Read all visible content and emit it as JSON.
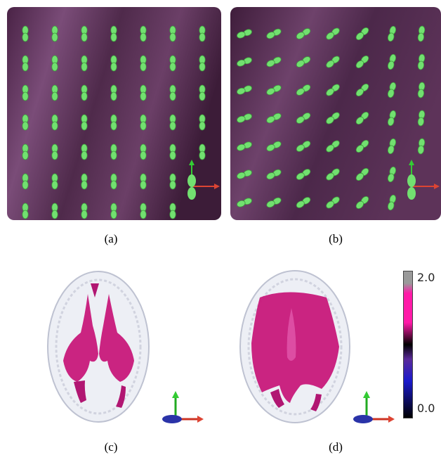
{
  "figure": {
    "panels": [
      {
        "id": "a",
        "caption": "(a)",
        "description_kind": "glyph-field-aligned"
      },
      {
        "id": "b",
        "caption": "(b)",
        "description_kind": "glyph-field-rotated"
      },
      {
        "id": "c",
        "caption": "(c)",
        "description_kind": "brain-volume"
      },
      {
        "id": "d",
        "caption": "(d)",
        "description_kind": "brain-volume"
      }
    ],
    "colorbar": {
      "max_label": "2.0",
      "min_label": "0.0",
      "colors": [
        "#000000",
        "#2a2aff",
        "#6a2aa8",
        "#ff1aa8",
        "#9a9a9a"
      ]
    },
    "colors": {
      "panel_bg": "#5a2d55",
      "glyph": "#72e070",
      "glyph_edge": "#3f9c3e",
      "brain_fill": "#c8187a",
      "brain_shell": "#d9dbe8"
    }
  }
}
